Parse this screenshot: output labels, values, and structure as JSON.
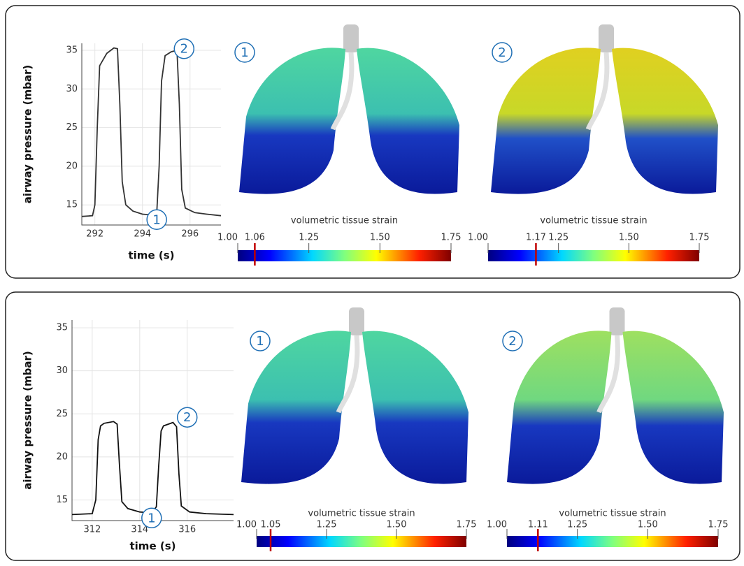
{
  "chart_data": [
    {
      "type": "line",
      "ylabel": "airway pressure (mbar)",
      "xlabel": "time (s)",
      "x": [
        291.45,
        291.9,
        292.0,
        292.1,
        292.2,
        292.5,
        292.8,
        292.95,
        293.05,
        293.15,
        293.3,
        293.6,
        294.0,
        294.4,
        294.6,
        294.7,
        294.8,
        294.95,
        295.2,
        295.45,
        295.55,
        295.65,
        295.8,
        296.2,
        296.7,
        297.3
      ],
      "values": [
        13.5,
        13.6,
        15,
        25,
        33,
        34.6,
        35.3,
        35.2,
        28,
        18,
        15,
        14.2,
        13.8,
        13.7,
        14,
        20,
        31,
        34.3,
        34.8,
        35,
        28,
        17,
        14.6,
        14,
        13.8,
        13.6
      ],
      "color": "#333333",
      "xlim": [
        291.45,
        297.3
      ],
      "ylim": [
        12.4,
        35.9
      ],
      "xticks": [
        292,
        294,
        296
      ],
      "yticks": [
        15,
        20,
        25,
        30,
        35
      ],
      "grid": true,
      "annotations": [
        {
          "text": "2",
          "x": 295.75,
          "y": 35.2
        },
        {
          "text": "1",
          "x": 294.6,
          "y": 13.1
        }
      ]
    },
    {
      "type": "colorbar",
      "annotation": "1",
      "title": "volumetric tissue strain",
      "xlim": [
        1,
        1.75
      ],
      "xticks": [
        {
          "value": 1,
          "label": "1.00"
        },
        1.25,
        {
          "value": 1.5,
          "label": "1.50"
        },
        1.75
      ],
      "marker": 1.06,
      "marker_color": "#c00000"
    },
    {
      "type": "colorbar",
      "annotation": "2",
      "title": "volumetric tissue strain",
      "xlim": [
        1,
        1.75
      ],
      "xticks": [
        {
          "value": 1,
          "label": "1.00"
        },
        1.25,
        {
          "value": 1.5,
          "label": "1.50"
        },
        1.75
      ],
      "marker": 1.17,
      "marker_color": "#c00000"
    },
    {
      "type": "line",
      "ylabel": "airway pressure (mbar)",
      "xlabel": "time (s)",
      "x": [
        311.15,
        312.0,
        312.15,
        312.25,
        312.35,
        312.5,
        312.9,
        313.05,
        313.15,
        313.25,
        313.5,
        314.0,
        314.5,
        314.7,
        314.8,
        314.9,
        315.0,
        315.4,
        315.55,
        315.65,
        315.75,
        316.1,
        316.8,
        317.95
      ],
      "values": [
        13.3,
        13.4,
        15,
        22,
        23.6,
        23.9,
        24.1,
        23.8,
        19,
        14.8,
        14,
        13.6,
        13.5,
        14.2,
        19,
        23,
        23.6,
        24,
        23.5,
        18,
        14.3,
        13.6,
        13.4,
        13.3
      ],
      "color": "#111111",
      "xlim": [
        311.15,
        317.95
      ],
      "ylim": [
        12.6,
        35.9
      ],
      "xticks": [
        312,
        314,
        316
      ],
      "yticks": [
        15,
        20,
        25,
        30,
        35
      ],
      "grid": true,
      "annotations": [
        {
          "text": "2",
          "x": 316.0,
          "y": 24.6
        },
        {
          "text": "1",
          "x": 314.5,
          "y": 12.9
        }
      ]
    },
    {
      "type": "colorbar",
      "annotation": "1",
      "title": "volumetric tissue strain",
      "xlim": [
        1,
        1.75
      ],
      "xticks": [
        {
          "value": 1,
          "label": "1.00"
        },
        1.25,
        {
          "value": 1.5,
          "label": "1.50"
        },
        1.75
      ],
      "marker": 1.05,
      "marker_color": "#c00000"
    },
    {
      "type": "colorbar",
      "annotation": "2",
      "title": "volumetric tissue strain",
      "xlim": [
        1,
        1.75
      ],
      "xticks": [
        {
          "value": 1,
          "label": "1.00"
        },
        1.25,
        {
          "value": 1.5,
          "label": "1.50"
        },
        1.75
      ],
      "marker": 1.11,
      "marker_color": "#c00000"
    }
  ]
}
